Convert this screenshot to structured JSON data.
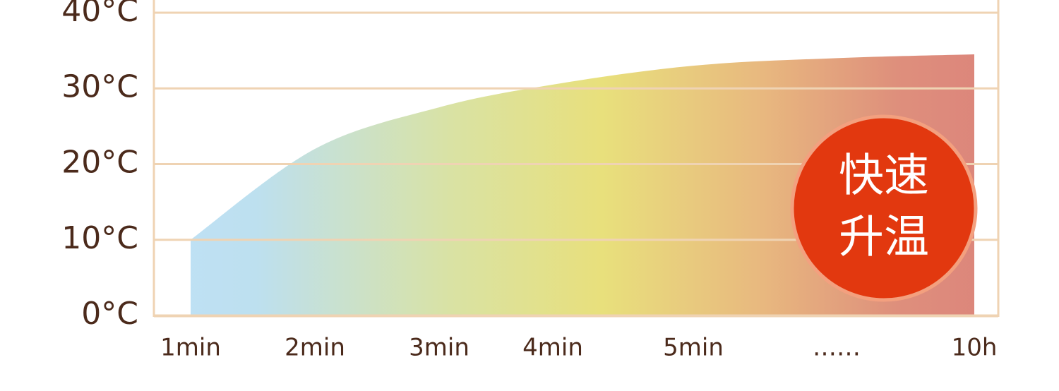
{
  "chart_data": {
    "type": "area",
    "categories": [
      "1min",
      "2min",
      "3min",
      "4min",
      "5min",
      "……",
      "10h"
    ],
    "values": [
      10,
      22,
      27.5,
      30.5,
      33,
      34,
      34.5
    ],
    "ylim": [
      0,
      40
    ],
    "yticks": [
      {
        "value": 0,
        "label": "0°C"
      },
      {
        "value": 10,
        "label": "10°C"
      },
      {
        "value": 20,
        "label": "20°C"
      },
      {
        "value": 30,
        "label": "30°C"
      },
      {
        "value": 40,
        "label": "40°C"
      }
    ],
    "grid": true,
    "annotation": [
      "快速",
      "升温"
    ]
  }
}
